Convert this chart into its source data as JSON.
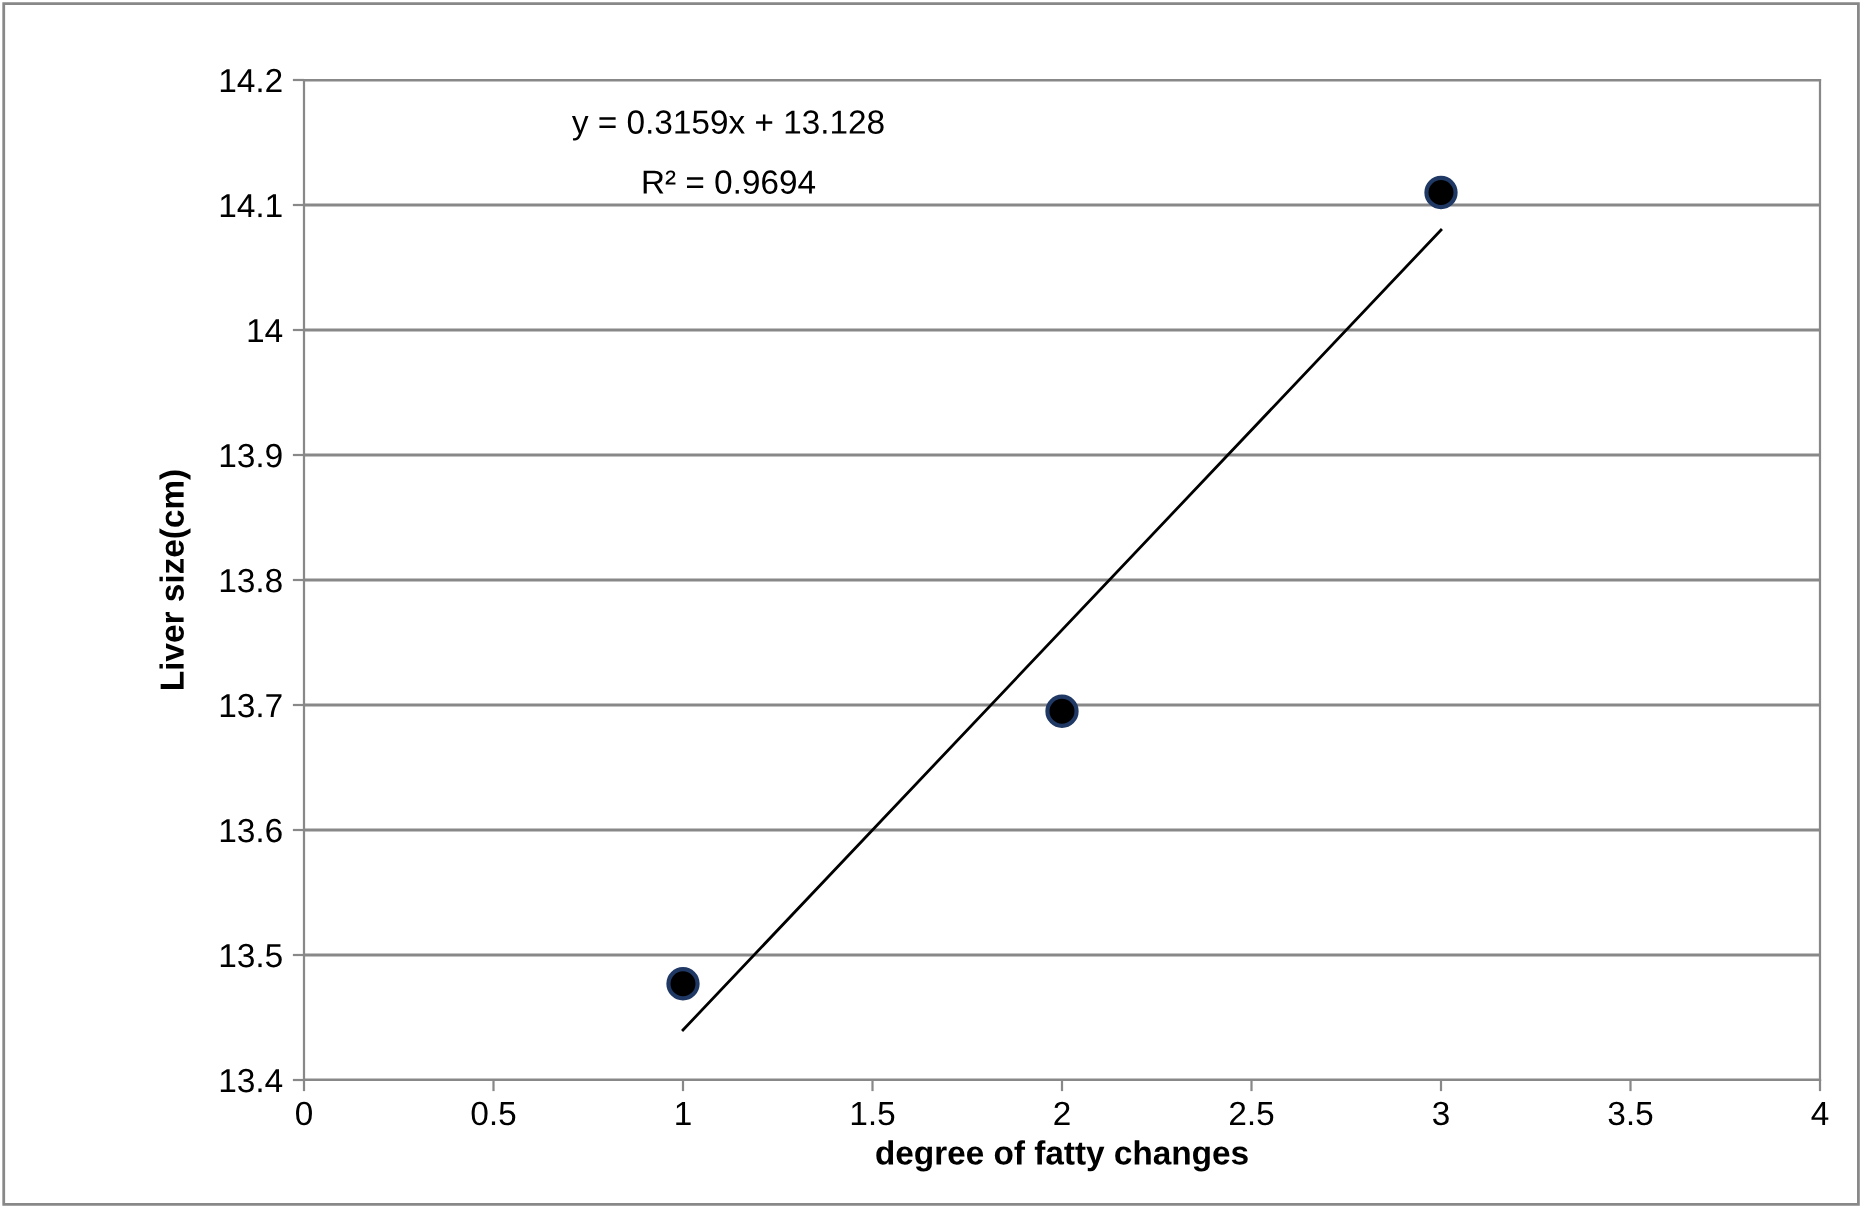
{
  "chart_data": {
    "type": "scatter",
    "xlabel": "degree of fatty changes",
    "ylabel": "Liver size(cm)",
    "series": [
      {
        "color": "#000000",
        "x": [
          1,
          2,
          3
        ],
        "values": [
          13.477,
          13.695,
          14.11
        ]
      },
      {
        "type": "line",
        "color": "#000000",
        "marker": "none",
        "x": [
          1,
          3
        ],
        "values": [
          13.44,
          14.08
        ]
      }
    ],
    "annotations": [
      "y = 0.3159x + 13.128",
      "R² = 0.9694"
    ],
    "xlim": [
      0,
      4
    ],
    "xticks": [
      0,
      0.5,
      1,
      1.5,
      2,
      2.5,
      3,
      3.5,
      4
    ],
    "ylim": [
      13.4,
      14.2
    ],
    "yticks": [
      13.4,
      13.5,
      13.6,
      13.7,
      13.8,
      13.9,
      14,
      14.1,
      14.2
    ],
    "grid": "y",
    "marker": "circle",
    "line_style": "solid",
    "legend": false
  }
}
